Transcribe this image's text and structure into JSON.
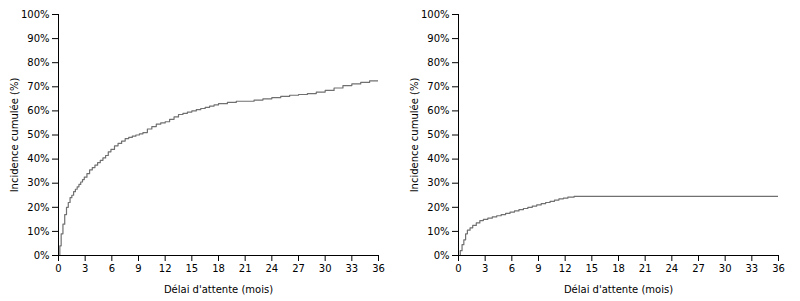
{
  "chart_data": [
    {
      "type": "step",
      "xlabel": "Délai d'attente (mois)",
      "ylabel": "Incidence cumulée (%)",
      "xlim": [
        0,
        36
      ],
      "ylim": [
        0,
        1.0
      ],
      "xticks": [
        0,
        3,
        6,
        9,
        12,
        15,
        18,
        21,
        24,
        27,
        30,
        33,
        36
      ],
      "yticks": [
        {
          "value": 0.0,
          "label": "0%"
        },
        {
          "value": 0.1,
          "label": "10%"
        },
        {
          "value": 0.2,
          "label": "20%"
        },
        {
          "value": 0.3,
          "label": "30%"
        },
        {
          "value": 0.4,
          "label": "40%"
        },
        {
          "value": 0.5,
          "label": "50%"
        },
        {
          "value": 0.6,
          "label": "60%"
        },
        {
          "value": 0.7,
          "label": "70%"
        },
        {
          "value": 0.8,
          "label": "80%"
        },
        {
          "value": 0.9,
          "label": "90%"
        },
        {
          "value": 1.0,
          "label": "100%"
        }
      ],
      "color": "#707070",
      "grid": false,
      "x": [
        0,
        0.15,
        0.3,
        0.5,
        0.7,
        0.9,
        1.1,
        1.3,
        1.5,
        1.7,
        1.9,
        2.1,
        2.3,
        2.5,
        2.7,
        2.9,
        3.2,
        3.5,
        3.8,
        4.1,
        4.4,
        4.7,
        5.0,
        5.3,
        5.6,
        5.9,
        6.3,
        6.7,
        7.1,
        7.5,
        7.9,
        8.3,
        8.7,
        9.1,
        9.5,
        10.0,
        10.5,
        11.0,
        11.5,
        12.0,
        12.5,
        13.0,
        13.5,
        14.0,
        14.5,
        15.0,
        15.5,
        16.0,
        16.5,
        17.0,
        17.5,
        18.0,
        19.0,
        20.0,
        21.0,
        22.0,
        23.0,
        24.0,
        25.0,
        26.0,
        27.0,
        28.0,
        29.0,
        30.0,
        31.0,
        32.0,
        33.0,
        34.0,
        35.0,
        36.0
      ],
      "values": [
        0.0,
        0.04,
        0.09,
        0.13,
        0.17,
        0.2,
        0.22,
        0.24,
        0.25,
        0.265,
        0.275,
        0.285,
        0.295,
        0.305,
        0.315,
        0.325,
        0.34,
        0.355,
        0.365,
        0.375,
        0.385,
        0.395,
        0.405,
        0.415,
        0.43,
        0.44,
        0.455,
        0.465,
        0.475,
        0.485,
        0.49,
        0.495,
        0.5,
        0.505,
        0.51,
        0.525,
        0.535,
        0.545,
        0.55,
        0.555,
        0.565,
        0.575,
        0.585,
        0.59,
        0.595,
        0.6,
        0.605,
        0.61,
        0.615,
        0.62,
        0.625,
        0.63,
        0.635,
        0.64,
        0.64,
        0.645,
        0.65,
        0.655,
        0.66,
        0.665,
        0.668,
        0.672,
        0.678,
        0.685,
        0.695,
        0.705,
        0.712,
        0.718,
        0.725,
        0.728
      ]
    },
    {
      "type": "step",
      "xlabel": "Délai d'attente (mois)",
      "ylabel": "Incidence cumulée (%)",
      "xlim": [
        0,
        36
      ],
      "ylim": [
        0,
        1.0
      ],
      "xticks": [
        0,
        3,
        6,
        9,
        12,
        15,
        18,
        21,
        24,
        27,
        30,
        33,
        36
      ],
      "yticks": [
        {
          "value": 0.0,
          "label": "0%"
        },
        {
          "value": 0.1,
          "label": "10%"
        },
        {
          "value": 0.2,
          "label": "20%"
        },
        {
          "value": 0.3,
          "label": "30%"
        },
        {
          "value": 0.4,
          "label": "40%"
        },
        {
          "value": 0.5,
          "label": "50%"
        },
        {
          "value": 0.6,
          "label": "60%"
        },
        {
          "value": 0.7,
          "label": "70%"
        },
        {
          "value": 0.8,
          "label": "80%"
        },
        {
          "value": 0.9,
          "label": "90%"
        },
        {
          "value": 1.0,
          "label": "100%"
        }
      ],
      "color": "#707070",
      "grid": false,
      "x": [
        0,
        0.2,
        0.4,
        0.6,
        0.8,
        1.0,
        1.3,
        1.6,
        2.0,
        2.4,
        2.8,
        3.3,
        3.8,
        4.3,
        4.8,
        5.3,
        5.8,
        6.3,
        6.8,
        7.3,
        7.8,
        8.3,
        8.8,
        9.3,
        9.8,
        10.3,
        10.8,
        11.3,
        11.8,
        12.3,
        13.0,
        36.0
      ],
      "values": [
        0.0,
        0.02,
        0.045,
        0.065,
        0.09,
        0.105,
        0.115,
        0.125,
        0.135,
        0.145,
        0.15,
        0.155,
        0.16,
        0.165,
        0.17,
        0.175,
        0.18,
        0.185,
        0.19,
        0.195,
        0.2,
        0.205,
        0.21,
        0.215,
        0.22,
        0.225,
        0.23,
        0.235,
        0.238,
        0.242,
        0.245,
        0.245
      ]
    }
  ]
}
